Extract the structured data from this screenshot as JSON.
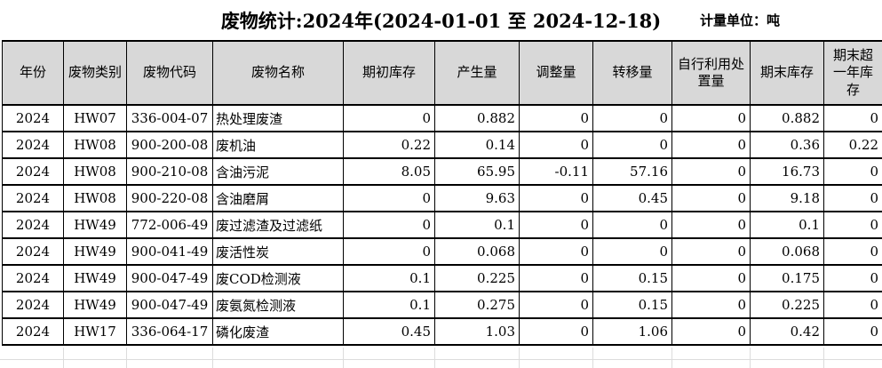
{
  "title": "废物统计:2024年(2024-01-01 至 2024-12-18)",
  "unit_label": "计量单位：吨",
  "table": {
    "columns": [
      "年份",
      "废物类别",
      "废物代码",
      "废物名称",
      "期初库存",
      "产生量",
      "调整量",
      "转移量",
      "自行利用处置量",
      "期末库存",
      "期末超一年库存"
    ],
    "rows": [
      [
        "2024",
        "HW07",
        "336-004-07",
        "热处理废渣",
        "0",
        "0.882",
        "0",
        "0",
        "0",
        "0.882",
        "0"
      ],
      [
        "2024",
        "HW08",
        "900-200-08",
        "废机油",
        "0.22",
        "0.14",
        "0",
        "0",
        "0",
        "0.36",
        "0.22"
      ],
      [
        "2024",
        "HW08",
        "900-210-08",
        "含油污泥",
        "8.05",
        "65.95",
        "-0.11",
        "57.16",
        "0",
        "16.73",
        "0"
      ],
      [
        "2024",
        "HW08",
        "900-220-08",
        "含油磨屑",
        "0",
        "9.63",
        "0",
        "0.45",
        "0",
        "9.18",
        "0"
      ],
      [
        "2024",
        "HW49",
        "772-006-49",
        "废过滤渣及过滤纸",
        "0",
        "0.1",
        "0",
        "0",
        "0",
        "0.1",
        "0"
      ],
      [
        "2024",
        "HW49",
        "900-041-49",
        "废活性炭",
        "0",
        "0.068",
        "0",
        "0",
        "0",
        "0.068",
        "0"
      ],
      [
        "2024",
        "HW49",
        "900-047-49",
        "废COD检测液",
        "0.1",
        "0.225",
        "0",
        "0.15",
        "0",
        "0.175",
        "0"
      ],
      [
        "2024",
        "HW49",
        "900-047-49",
        "废氨氮检测液",
        "0.1",
        "0.275",
        "0",
        "0.15",
        "0",
        "0.225",
        "0"
      ],
      [
        "2024",
        "HW17",
        "336-064-17",
        "磷化废渣",
        "0.45",
        "1.03",
        "0",
        "1.06",
        "0",
        "0.42",
        "0"
      ]
    ]
  },
  "colors": {
    "header_bg": "#d8d8d8",
    "table_border": "#000000",
    "gridline": "#dcdcdc",
    "background": "#ffffff"
  }
}
